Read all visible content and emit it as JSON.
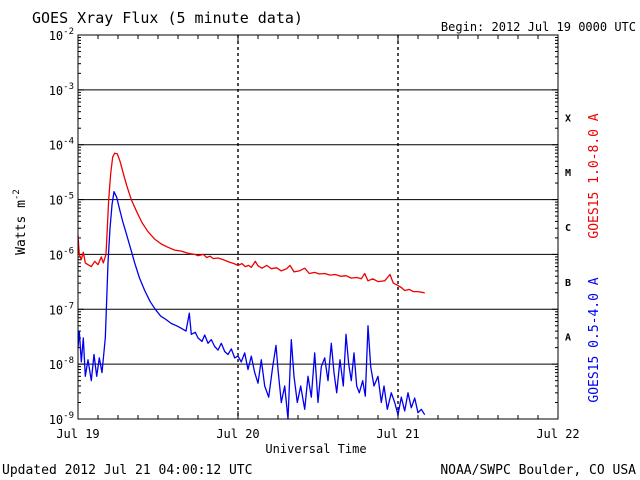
{
  "chart_data": {
    "type": "line",
    "title": "GOES Xray Flux (5 minute data)",
    "begin_label": "Begin:  2012 Jul 19 0000 UTC",
    "ylabel": "Watts m",
    "ylabel_superscript": "-2",
    "xlabel": "Universal Time",
    "updated": "Updated 2012 Jul 21 04:00:12 UTC",
    "credit": "NOAA/SWPC Boulder, CO USA",
    "yscale": "log",
    "ylim": [
      1e-09,
      0.01
    ],
    "xlim_hours": [
      0,
      72
    ],
    "grid": true,
    "y_ticks": [
      {
        "exp": -9,
        "base": "10",
        "sup": "-9"
      },
      {
        "exp": -8,
        "base": "10",
        "sup": "-8"
      },
      {
        "exp": -7,
        "base": "10",
        "sup": "-7"
      },
      {
        "exp": -6,
        "base": "10",
        "sup": "-6"
      },
      {
        "exp": -5,
        "base": "10",
        "sup": "-5"
      },
      {
        "exp": -4,
        "base": "10",
        "sup": "-4"
      },
      {
        "exp": -3,
        "base": "10",
        "sup": "-3"
      },
      {
        "exp": -2,
        "base": "10",
        "sup": "-2"
      }
    ],
    "x_ticks": [
      {
        "hour": 0,
        "label": "Jul 19"
      },
      {
        "hour": 24,
        "label": "Jul 20"
      },
      {
        "hour": 48,
        "label": "Jul 21"
      },
      {
        "hour": 72,
        "label": "Jul 22"
      }
    ],
    "flare_classes": [
      {
        "label": "A",
        "exp": -7.5
      },
      {
        "label": "B",
        "exp": -6.5
      },
      {
        "label": "C",
        "exp": -5.5
      },
      {
        "label": "M",
        "exp": -4.5
      },
      {
        "label": "X",
        "exp": -3.5
      }
    ],
    "series": [
      {
        "name": "GOES15 1.0-8.0 A",
        "color": "#ee0000",
        "points": [
          [
            0.0,
            2.2e-06
          ],
          [
            0.2,
            1e-06
          ],
          [
            0.5,
            8e-07
          ],
          [
            0.8,
            1.1e-06
          ],
          [
            1.1,
            7e-07
          ],
          [
            1.5,
            6.5e-07
          ],
          [
            2.0,
            6e-07
          ],
          [
            2.5,
            7.5e-07
          ],
          [
            3.0,
            6.5e-07
          ],
          [
            3.5,
            9e-07
          ],
          [
            3.8,
            7e-07
          ],
          [
            4.2,
            1e-06
          ],
          [
            4.4,
            3e-06
          ],
          [
            4.6,
            1e-05
          ],
          [
            4.9,
            3e-05
          ],
          [
            5.2,
            6e-05
          ],
          [
            5.5,
            7e-05
          ],
          [
            5.9,
            6.8e-05
          ],
          [
            6.3,
            5e-05
          ],
          [
            6.8,
            3e-05
          ],
          [
            7.3,
            1.8e-05
          ],
          [
            8.0,
            1e-05
          ],
          [
            8.8,
            6e-06
          ],
          [
            9.6,
            3.8e-06
          ],
          [
            10.5,
            2.6e-06
          ],
          [
            11.5,
            1.9e-06
          ],
          [
            12.5,
            1.55e-06
          ],
          [
            13.5,
            1.35e-06
          ],
          [
            14.5,
            1.2e-06
          ],
          [
            15.5,
            1.15e-06
          ],
          [
            16.5,
            1.05e-06
          ],
          [
            17.5,
            1e-06
          ],
          [
            18.0,
            9.5e-07
          ],
          [
            18.8,
            1e-06
          ],
          [
            19.3,
            8.8e-07
          ],
          [
            19.8,
            9.3e-07
          ],
          [
            20.3,
            8.4e-07
          ],
          [
            21.0,
            8.6e-07
          ],
          [
            21.8,
            8e-07
          ],
          [
            22.6,
            7.3e-07
          ],
          [
            23.4,
            6.8e-07
          ],
          [
            24.0,
            6.3e-07
          ],
          [
            24.6,
            6.8e-07
          ],
          [
            25.1,
            6e-07
          ],
          [
            25.6,
            6.3e-07
          ],
          [
            26.0,
            5.8e-07
          ],
          [
            26.6,
            7.5e-07
          ],
          [
            27.0,
            6.2e-07
          ],
          [
            27.6,
            5.6e-07
          ],
          [
            28.3,
            6.3e-07
          ],
          [
            29.0,
            5.5e-07
          ],
          [
            29.8,
            5.7e-07
          ],
          [
            30.5,
            5e-07
          ],
          [
            31.3,
            5.5e-07
          ],
          [
            31.8,
            6.3e-07
          ],
          [
            32.4,
            4.8e-07
          ],
          [
            33.2,
            5e-07
          ],
          [
            34.0,
            5.6e-07
          ],
          [
            34.7,
            4.5e-07
          ],
          [
            35.5,
            4.7e-07
          ],
          [
            36.2,
            4.4e-07
          ],
          [
            37.0,
            4.5e-07
          ],
          [
            37.8,
            4.2e-07
          ],
          [
            38.6,
            4.3e-07
          ],
          [
            39.4,
            4e-07
          ],
          [
            40.2,
            4.1e-07
          ],
          [
            41.0,
            3.7e-07
          ],
          [
            41.8,
            3.8e-07
          ],
          [
            42.5,
            3.6e-07
          ],
          [
            43.0,
            4.5e-07
          ],
          [
            43.5,
            3.3e-07
          ],
          [
            44.2,
            3.6e-07
          ],
          [
            45.0,
            3.2e-07
          ],
          [
            46.0,
            3.3e-07
          ],
          [
            46.8,
            4.3e-07
          ],
          [
            47.3,
            3e-07
          ],
          [
            48.0,
            2.7e-07
          ],
          [
            48.5,
            2.5e-07
          ],
          [
            49.0,
            2.2e-07
          ],
          [
            49.7,
            2.3e-07
          ],
          [
            50.3,
            2.1e-07
          ],
          [
            51.0,
            2.1e-07
          ],
          [
            52.0,
            2e-07
          ]
        ]
      },
      {
        "name": "GOES15 0.5-4.0 A",
        "color": "#0000ee",
        "points": [
          [
            0.0,
            2e-08
          ],
          [
            0.2,
            4e-08
          ],
          [
            0.5,
            1.1e-08
          ],
          [
            0.8,
            3e-08
          ],
          [
            1.1,
            6e-09
          ],
          [
            1.5,
            1.2e-08
          ],
          [
            2.0,
            5e-09
          ],
          [
            2.4,
            1.5e-08
          ],
          [
            2.8,
            6e-09
          ],
          [
            3.2,
            1.3e-08
          ],
          [
            3.6,
            7e-09
          ],
          [
            4.1,
            3e-08
          ],
          [
            4.3,
            1.5e-07
          ],
          [
            4.5,
            7e-07
          ],
          [
            4.8,
            3e-06
          ],
          [
            5.1,
            8e-06
          ],
          [
            5.4,
            1.4e-05
          ],
          [
            5.8,
            1.1e-05
          ],
          [
            6.2,
            7e-06
          ],
          [
            6.7,
            4e-06
          ],
          [
            7.2,
            2.5e-06
          ],
          [
            7.8,
            1.4e-06
          ],
          [
            8.5,
            7e-07
          ],
          [
            9.2,
            3.8e-07
          ],
          [
            10.0,
            2.2e-07
          ],
          [
            10.8,
            1.4e-07
          ],
          [
            11.6,
            1e-07
          ],
          [
            12.4,
            7.5e-08
          ],
          [
            13.2,
            6.5e-08
          ],
          [
            14.0,
            5.5e-08
          ],
          [
            14.8,
            5e-08
          ],
          [
            15.5,
            4.5e-08
          ],
          [
            16.2,
            4e-08
          ],
          [
            16.7,
            8.5e-08
          ],
          [
            17.0,
            3.5e-08
          ],
          [
            17.6,
            3.8e-08
          ],
          [
            18.0,
            3e-08
          ],
          [
            18.6,
            2.6e-08
          ],
          [
            19.0,
            3.4e-08
          ],
          [
            19.5,
            2.4e-08
          ],
          [
            20.0,
            2.8e-08
          ],
          [
            20.5,
            2.1e-08
          ],
          [
            21.0,
            1.8e-08
          ],
          [
            21.5,
            2.4e-08
          ],
          [
            22.0,
            1.7e-08
          ],
          [
            22.5,
            1.5e-08
          ],
          [
            23.0,
            1.9e-08
          ],
          [
            23.5,
            1.3e-08
          ],
          [
            24.0,
            1.4e-08
          ],
          [
            24.5,
            1.1e-08
          ],
          [
            25.0,
            1.6e-08
          ],
          [
            25.5,
            8e-09
          ],
          [
            26.0,
            1.4e-08
          ],
          [
            26.5,
            7e-09
          ],
          [
            27.0,
            4.5e-09
          ],
          [
            27.5,
            1.2e-08
          ],
          [
            28.0,
            4e-09
          ],
          [
            28.6,
            2.5e-09
          ],
          [
            29.2,
            9e-09
          ],
          [
            29.7,
            2.2e-08
          ],
          [
            30.0,
            8e-09
          ],
          [
            30.5,
            2e-09
          ],
          [
            31.0,
            4e-09
          ],
          [
            31.5,
            1e-09
          ],
          [
            32.0,
            2.8e-08
          ],
          [
            32.4,
            6e-09
          ],
          [
            32.9,
            2e-09
          ],
          [
            33.4,
            4e-09
          ],
          [
            34.0,
            1.5e-09
          ],
          [
            34.5,
            6e-09
          ],
          [
            35.0,
            2.5e-09
          ],
          [
            35.5,
            1.6e-08
          ],
          [
            36.0,
            2e-09
          ],
          [
            36.5,
            9e-09
          ],
          [
            37.0,
            1.3e-08
          ],
          [
            37.5,
            5e-09
          ],
          [
            38.0,
            2.4e-08
          ],
          [
            38.4,
            7e-09
          ],
          [
            38.8,
            3e-09
          ],
          [
            39.3,
            1.2e-08
          ],
          [
            39.8,
            4e-09
          ],
          [
            40.2,
            3.5e-08
          ],
          [
            40.6,
            1e-08
          ],
          [
            41.0,
            5e-09
          ],
          [
            41.4,
            1.6e-08
          ],
          [
            41.8,
            4e-09
          ],
          [
            42.2,
            3e-09
          ],
          [
            42.7,
            5e-09
          ],
          [
            43.1,
            2.6e-09
          ],
          [
            43.5,
            5e-08
          ],
          [
            43.9,
            9e-09
          ],
          [
            44.4,
            4e-09
          ],
          [
            45.0,
            6e-09
          ],
          [
            45.5,
            2e-09
          ],
          [
            45.9,
            4e-09
          ],
          [
            46.4,
            1.5e-09
          ],
          [
            47.0,
            3e-09
          ],
          [
            47.5,
            2e-09
          ],
          [
            48.0,
            1.2e-09
          ],
          [
            48.5,
            2.5e-09
          ],
          [
            49.0,
            1.4e-09
          ],
          [
            49.5,
            3e-09
          ],
          [
            50.0,
            1.6e-09
          ],
          [
            50.5,
            2.4e-09
          ],
          [
            51.0,
            1.3e-09
          ],
          [
            51.5,
            1.5e-09
          ],
          [
            52.0,
            1.2e-09
          ]
        ]
      }
    ]
  }
}
